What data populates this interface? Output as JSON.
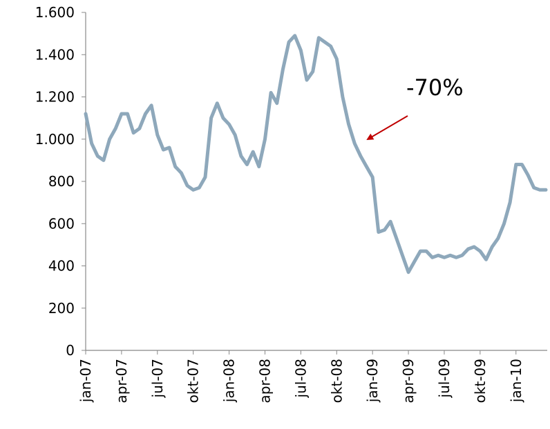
{
  "chart_data": {
    "type": "line",
    "annotation": "-70%",
    "categories": [
      "jan-07",
      null,
      null,
      null,
      null,
      null,
      "apr-07",
      null,
      null,
      null,
      null,
      null,
      "jul-07",
      null,
      null,
      null,
      null,
      null,
      "okt-07",
      null,
      null,
      null,
      null,
      null,
      "jan-08",
      null,
      null,
      null,
      null,
      null,
      "apr-08",
      null,
      null,
      null,
      null,
      null,
      "jul-08",
      null,
      null,
      null,
      null,
      null,
      "okt-08",
      null,
      null,
      null,
      null,
      null,
      "jan-09",
      null,
      null,
      null,
      null,
      null,
      "apr-09",
      null,
      null,
      null,
      null,
      null,
      "jul-09",
      null,
      null,
      null,
      null,
      null,
      "okt-09",
      null,
      null,
      null,
      null,
      null,
      "jan-10",
      null,
      null,
      null,
      null,
      null
    ],
    "series": [
      {
        "color": "#8ea8bb",
        "values": [
          1120,
          980,
          920,
          900,
          1000,
          1050,
          1120,
          1120,
          1030,
          1050,
          1120,
          1160,
          1020,
          950,
          960,
          870,
          840,
          780,
          760,
          770,
          820,
          1100,
          1170,
          1100,
          1070,
          1020,
          920,
          880,
          940,
          870,
          1000,
          1220,
          1170,
          1330,
          1460,
          1490,
          1420,
          1280,
          1320,
          1480,
          1460,
          1440,
          1380,
          1200,
          1070,
          980,
          920,
          870,
          820,
          560,
          570,
          610,
          530,
          450,
          370,
          420,
          470,
          470,
          440,
          450,
          440,
          450,
          440,
          450,
          480,
          490,
          470,
          430,
          490,
          530,
          600,
          700,
          880,
          880,
          830,
          770,
          760,
          760
        ]
      }
    ],
    "ylim": [
      0,
      1600
    ],
    "yticks": [
      0,
      200,
      400,
      600,
      800,
      {
        "value": 1000,
        "label": "1.000"
      },
      {
        "value": 1200,
        "label": "1.200"
      },
      {
        "value": 1400,
        "label": "1.400"
      },
      {
        "value": 1600,
        "label": "1.600"
      }
    ],
    "annotation_color": "#c00000"
  }
}
